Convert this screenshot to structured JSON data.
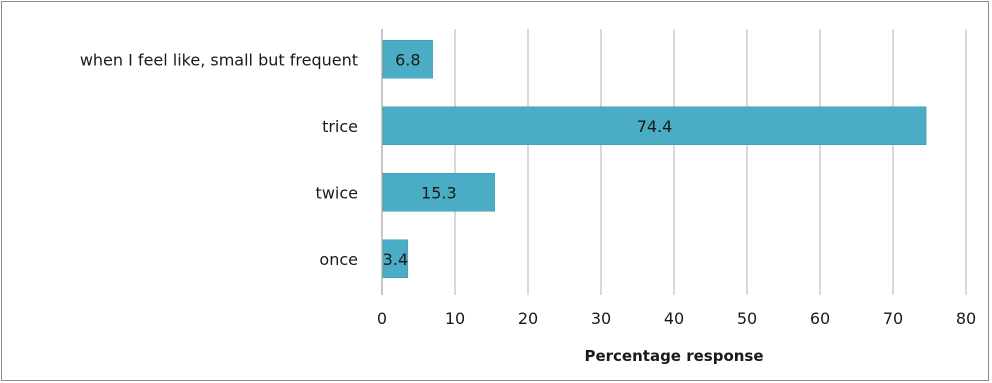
{
  "chart_data": {
    "type": "bar",
    "orientation": "horizontal",
    "categories": [
      "when I feel like, small but frequent",
      "trice",
      "twice",
      "once"
    ],
    "values": [
      6.8,
      74.4,
      15.3,
      3.4
    ],
    "xlabel": "Percentage response",
    "ylabel": "",
    "xlim": [
      0,
      80
    ],
    "xticks": [
      0,
      10,
      20,
      30,
      40,
      50,
      60,
      70,
      80
    ],
    "grid": "vertical",
    "bar_color": "#4bacc6",
    "data_labels": [
      "6.8",
      "74.4",
      "15.3",
      "3.4"
    ]
  }
}
